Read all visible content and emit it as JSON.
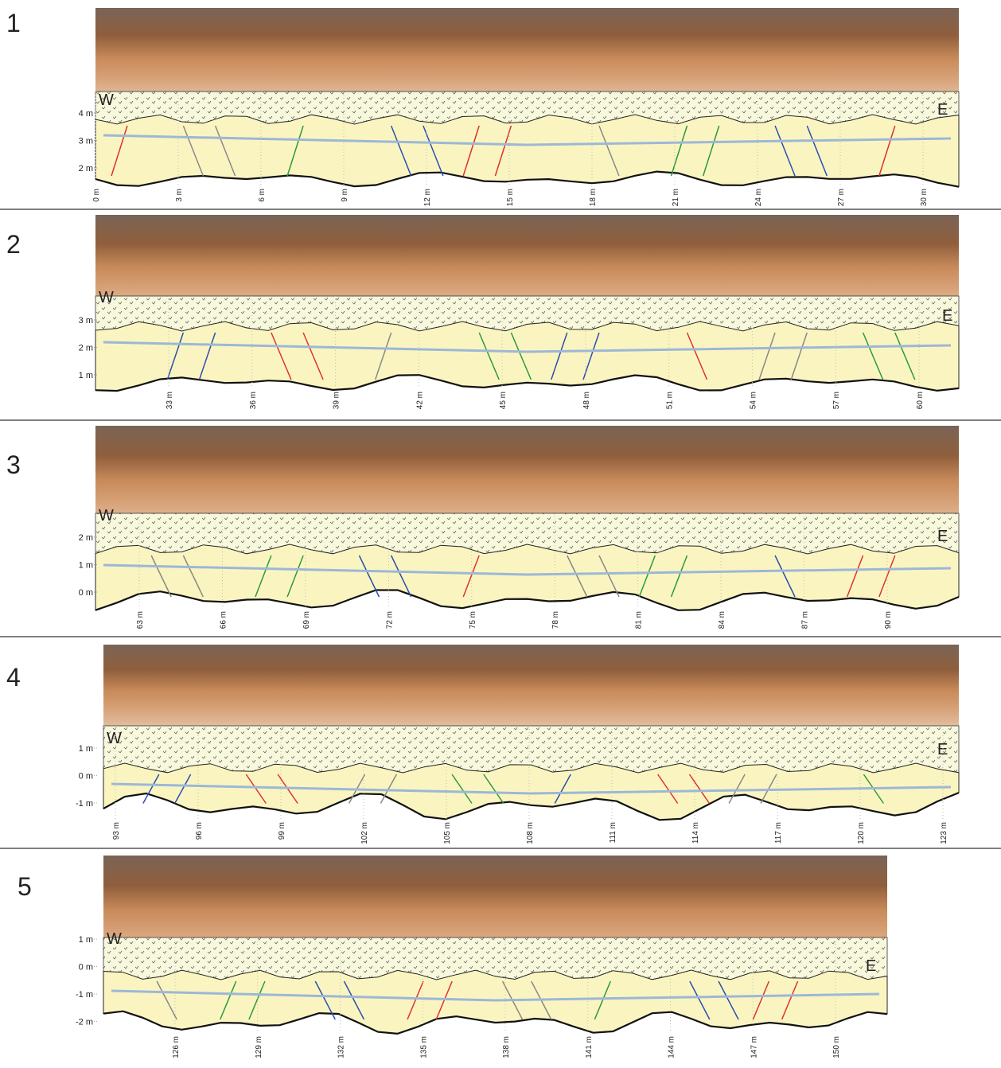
{
  "panels": [
    {
      "label": "1",
      "west": "W",
      "east": "E",
      "y_labels": [
        "4 m",
        "3 m",
        "2 m"
      ],
      "x_labels": [
        "0 m",
        "3 m",
        "6 m",
        "9 m",
        "12 m",
        "15 m",
        "18 m",
        "21 m",
        "24 m",
        "27 m",
        "30 m"
      ]
    },
    {
      "label": "2",
      "west": "W",
      "east": "E",
      "y_labels": [
        "3 m",
        "2 m",
        "1 m"
      ],
      "x_labels": [
        "33 m",
        "36 m",
        "39 m",
        "42 m",
        "45 m",
        "48 m",
        "51 m",
        "54 m",
        "57 m",
        "60 m"
      ]
    },
    {
      "label": "3",
      "west": "W",
      "east": "E",
      "y_labels": [
        "2 m",
        "1 m",
        "0 m"
      ],
      "x_labels": [
        "63 m",
        "66 m",
        "69 m",
        "72 m",
        "75 m",
        "78 m",
        "81 m",
        "84 m",
        "87 m",
        "90 m"
      ]
    },
    {
      "label": "4",
      "west": "W",
      "east": "E",
      "y_labels": [
        "1 m",
        "0 m",
        "-1 m"
      ],
      "x_labels": [
        "93 m",
        "96 m",
        "99 m",
        "102 m",
        "105 m",
        "108 m",
        "111 m",
        "114 m",
        "117 m",
        "120 m",
        "123 m"
      ]
    },
    {
      "label": "5",
      "west": "W",
      "east": "E",
      "y_labels": [
        "1 m",
        "0 m",
        "-1 m",
        "-2 m"
      ],
      "x_labels": [
        "126 m",
        "129 m",
        "132 m",
        "135 m",
        "138 m",
        "141 m",
        "144 m",
        "147 m",
        "150 m"
      ]
    }
  ]
}
